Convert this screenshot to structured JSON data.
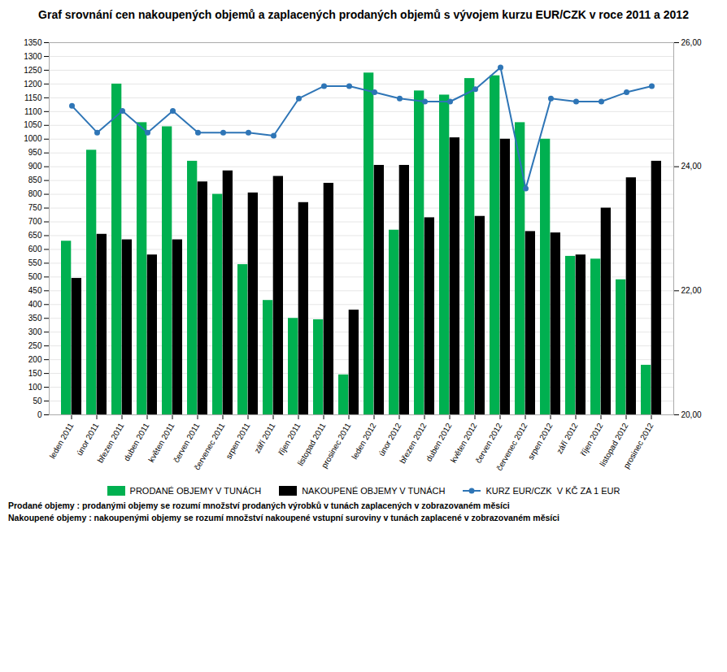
{
  "chart_data": {
    "type": "bar",
    "title": "Graf srovnání cen nakoupených objemů a zaplacených prodaných objemů s vývojem kurzu EUR/CZK v roce 2011 a 2012",
    "categories": [
      "leden 2011",
      "únor 2011",
      "březen 2011",
      "duben 2011",
      "květen 2011",
      "červen 2011",
      "červenec 2011",
      "srpen 2011",
      "září 2011",
      "říjen 2011",
      "listopad 2011",
      "prosinec 2011",
      "leden 2012",
      "únor 2012",
      "březen 2012",
      "duben 2012",
      "květen 2012",
      "červen 2012",
      "červenec 2012",
      "srpen 2012",
      "září 2012",
      "říjen 2012",
      "listopad 2012",
      "prosinec 2012"
    ],
    "series": [
      {
        "name": "PRODANÉ OBJEMY V TUNÁCH",
        "type": "bar",
        "color": "#00b050",
        "values": [
          630,
          960,
          1200,
          1060,
          1045,
          920,
          800,
          545,
          415,
          350,
          345,
          145,
          1240,
          670,
          1175,
          1160,
          1220,
          1230,
          1060,
          1000,
          575,
          565,
          490,
          180
        ]
      },
      {
        "name": "NAKOUPENÉ OBJEMY V TUNÁCH",
        "type": "bar",
        "color": "#000000",
        "values": [
          495,
          655,
          635,
          580,
          635,
          845,
          885,
          805,
          865,
          770,
          840,
          380,
          905,
          905,
          715,
          1005,
          720,
          1000,
          665,
          660,
          580,
          750,
          860,
          920
        ]
      },
      {
        "name": "KURZ EUR/CZK  V KČ ZA 1 EUR",
        "type": "line",
        "axis": "y2",
        "color": "#2e75b6",
        "marker": "circle",
        "values": [
          24.98,
          24.55,
          24.9,
          24.55,
          24.9,
          24.55,
          24.55,
          24.55,
          24.5,
          25.1,
          25.3,
          25.3,
          25.2,
          25.1,
          25.05,
          25.05,
          25.25,
          25.6,
          23.65,
          25.1,
          25.05,
          25.05,
          25.2,
          25.3
        ]
      }
    ],
    "ylim": [
      0,
      1350
    ],
    "yticks": [
      0,
      50,
      100,
      150,
      200,
      250,
      300,
      350,
      400,
      450,
      500,
      550,
      600,
      650,
      700,
      750,
      800,
      850,
      900,
      950,
      1000,
      1050,
      1100,
      1150,
      1200,
      1250,
      1300,
      1350
    ],
    "y2lim": [
      20,
      26
    ],
    "y2ticks": [
      {
        "value": 20,
        "label": "20,00"
      },
      {
        "value": 22,
        "label": "22,00"
      },
      {
        "value": 24,
        "label": "24,00"
      },
      {
        "value": 26,
        "label": "26,00"
      }
    ],
    "grid": true,
    "legend": "bottom",
    "annotations": [
      "Prodané objemy : prodanými objemy se rozumí množství prodaných výrobků v tunách zaplacených v zobrazovaném měsíci",
      "Nakoupené objemy : nakoupenými objemy se rozumí množství nakoupené vstupní suroviny v tunách zaplacené v zobrazovaném měsíci"
    ]
  }
}
